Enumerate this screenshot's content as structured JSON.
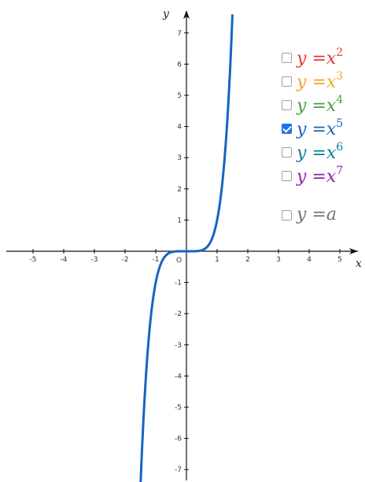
{
  "graph": {
    "x_axis_label": "x",
    "y_axis_label": "y",
    "origin_label": "O",
    "x_ticks": [
      "-5",
      "-4",
      "-3",
      "-2",
      "-1",
      "1",
      "2",
      "3",
      "4",
      "5"
    ],
    "y_ticks": [
      "7",
      "6",
      "5",
      "4",
      "3",
      "2",
      "1",
      "-1",
      "-2",
      "-3",
      "-4",
      "-5",
      "-6",
      "-7"
    ]
  },
  "legend": {
    "items": [
      {
        "y": "y",
        "eq": "=",
        "base": "x",
        "exp": "2",
        "color": "#e53935",
        "checked": false
      },
      {
        "y": "y",
        "eq": "=",
        "base": "x",
        "exp": "3",
        "color": "#f5a623",
        "checked": false
      },
      {
        "y": "y",
        "eq": "=",
        "base": "x",
        "exp": "4",
        "color": "#43a047",
        "checked": false
      },
      {
        "y": "y",
        "eq": "=",
        "base": "x",
        "exp": "5",
        "color": "#1565c0",
        "checked": true
      },
      {
        "y": "y",
        "eq": "=",
        "base": "x",
        "exp": "6",
        "color": "#00838f",
        "checked": false
      },
      {
        "y": "y",
        "eq": "=",
        "base": "x",
        "exp": "7",
        "color": "#8e24aa",
        "checked": false
      }
    ],
    "constant": {
      "y": "y",
      "eq": "=",
      "rhs": "a",
      "color": "#757575",
      "checked": false
    }
  },
  "chart_data": {
    "type": "line",
    "function": "y = x^5",
    "xlim": [
      -5,
      5
    ],
    "ylim": [
      -7,
      7
    ],
    "grid": false,
    "series": [
      {
        "name": "y = x^5",
        "color": "#1565c0",
        "x": [
          -1.48,
          -1.4,
          -1.3,
          -1.2,
          -1.1,
          -1.0,
          -0.9,
          -0.8,
          -0.6,
          -0.4,
          0,
          0.4,
          0.6,
          0.8,
          0.9,
          1.0,
          1.1,
          1.2,
          1.3,
          1.4,
          1.48
        ],
        "y": [
          -7.1,
          -5.38,
          -3.71,
          -2.49,
          -1.61,
          -1.0,
          -0.59,
          -0.33,
          -0.08,
          -0.01,
          0,
          0.01,
          0.08,
          0.33,
          0.59,
          1.0,
          1.61,
          2.49,
          3.71,
          5.38,
          7.1
        ]
      }
    ]
  }
}
